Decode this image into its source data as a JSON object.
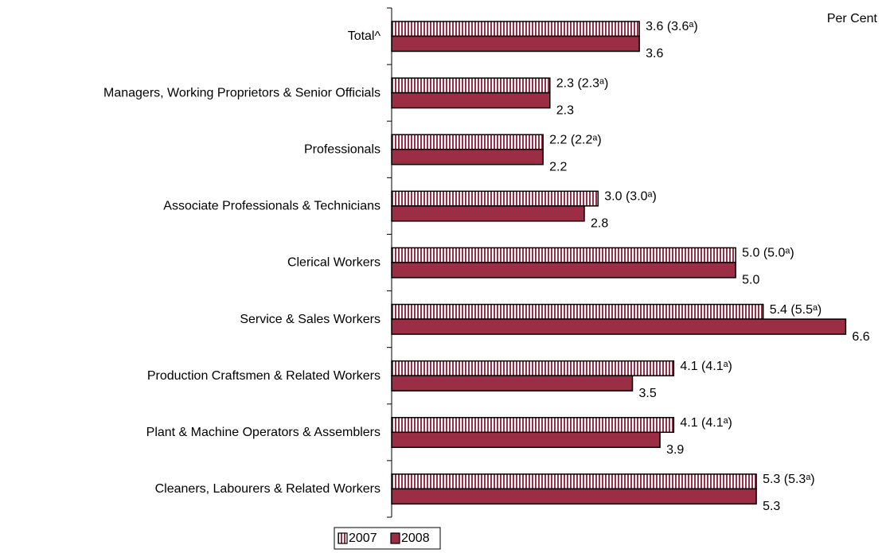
{
  "chart_data": {
    "type": "hbar",
    "axis_label": "Per Cent",
    "categories": [
      "Total^",
      "Managers, Working Proprietors & Senior Officials",
      "Professionals",
      "Associate Professionals & Technicians",
      "Clerical Workers",
      "Service & Sales Workers",
      "Production Craftsmen & Related Workers",
      "Plant & Machine Operators & Assemblers",
      "Cleaners, Labourers & Related Workers"
    ],
    "series": [
      {
        "name": "2007",
        "color": "#9b2d44",
        "pattern": "vertical-stripes",
        "values": [
          3.6,
          2.3,
          2.2,
          3.0,
          5.0,
          5.4,
          4.1,
          4.1,
          5.3
        ],
        "value_labels": [
          "3.6 (3.6ᵃ)",
          "2.3 (2.3ᵃ)",
          "2.2 (2.2ᵃ)",
          "3.0 (3.0ᵃ)",
          "5.0 (5.0ᵃ)",
          "5.4 (5.5ᵃ)",
          "4.1 (4.1ᵃ)",
          "4.1 (4.1ᵃ)",
          "5.3 (5.3ᵃ)"
        ]
      },
      {
        "name": "2008",
        "color": "#9b2d44",
        "pattern": "solid",
        "values": [
          3.6,
          2.3,
          2.2,
          2.8,
          5.0,
          6.6,
          3.5,
          3.9,
          5.3
        ],
        "value_labels": [
          "3.6",
          "2.3",
          "2.2",
          "2.8",
          "5.0",
          "6.6",
          "3.5",
          "3.9",
          "5.3"
        ]
      }
    ],
    "xlim": [
      0,
      7
    ],
    "legend": "bottom"
  }
}
